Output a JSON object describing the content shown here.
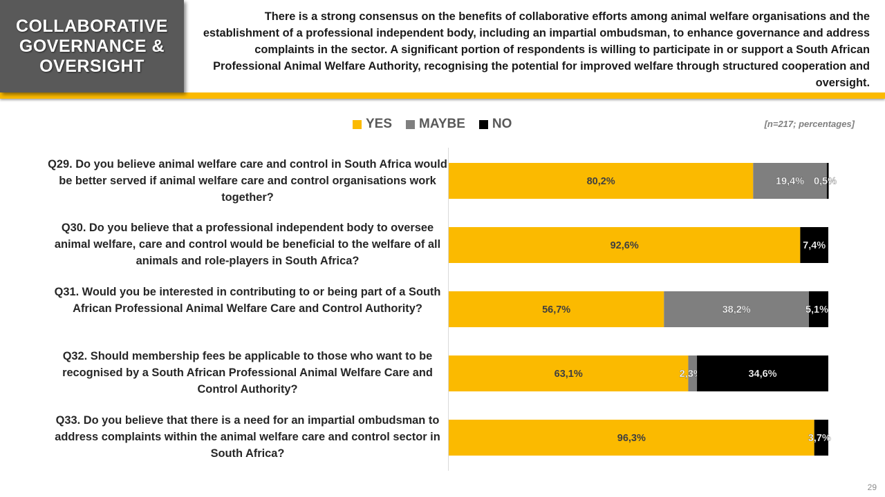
{
  "header": {
    "title": "COLLABORATIVE\nGOVERNANCE &\nOVERSIGHT",
    "summary": "There is a strong consensus on the benefits of collaborative efforts among animal welfare organisations and the establishment of a professional independent body, including an impartial ombudsman, to enhance governance and address complaints in the sector. A significant portion of respondents is willing to participate in or support a South African Professional Animal Welfare Authority, recognising the potential for improved welfare through structured cooperation and oversight."
  },
  "sample_note": "[n=217; percentages]",
  "page_number": "29",
  "chart_data": {
    "type": "bar",
    "orientation": "horizontal",
    "stacked": true,
    "categories": [
      "Q29. Do you believe animal welfare care and control in South Africa would be better served if animal welfare care and control organisations work together?",
      "Q30. Do you believe that a professional independent body to oversee animal welfare, care and control would be beneficial to the welfare of all animals and role-players in South Africa?",
      "Q31. Would you be interested in contributing to or being part of a South African Professional Animal Welfare Care and Control Authority?",
      "Q32. Should membership fees be applicable to those who want to be recognised by a South African Professional Animal Welfare Care and Control Authority?",
      "Q33. Do you believe that there is a need for an impartial ombudsman to address complaints within the animal welfare care and control sector in South Africa?"
    ],
    "series": [
      {
        "name": "YES",
        "color": "#fbba00",
        "values": [
          80.2,
          92.6,
          56.7,
          63.1,
          96.3
        ],
        "labels": [
          "80,2%",
          "92,6%",
          "56,7%",
          "63,1%",
          "96,3%"
        ]
      },
      {
        "name": "MAYBE",
        "color": "#7f7f7f",
        "values": [
          19.4,
          0,
          38.2,
          2.3,
          0
        ],
        "labels": [
          "19,4%",
          "",
          "38,2%",
          "2,3%",
          ""
        ]
      },
      {
        "name": "NO",
        "color": "#000000",
        "values": [
          0.5,
          7.4,
          5.1,
          34.6,
          3.7
        ],
        "labels": [
          "0,5%",
          "7,4%",
          "5,1%",
          "34,6%",
          "3,7%"
        ]
      }
    ],
    "xlim": [
      0,
      100
    ],
    "legend_position": "top",
    "grid": false
  }
}
